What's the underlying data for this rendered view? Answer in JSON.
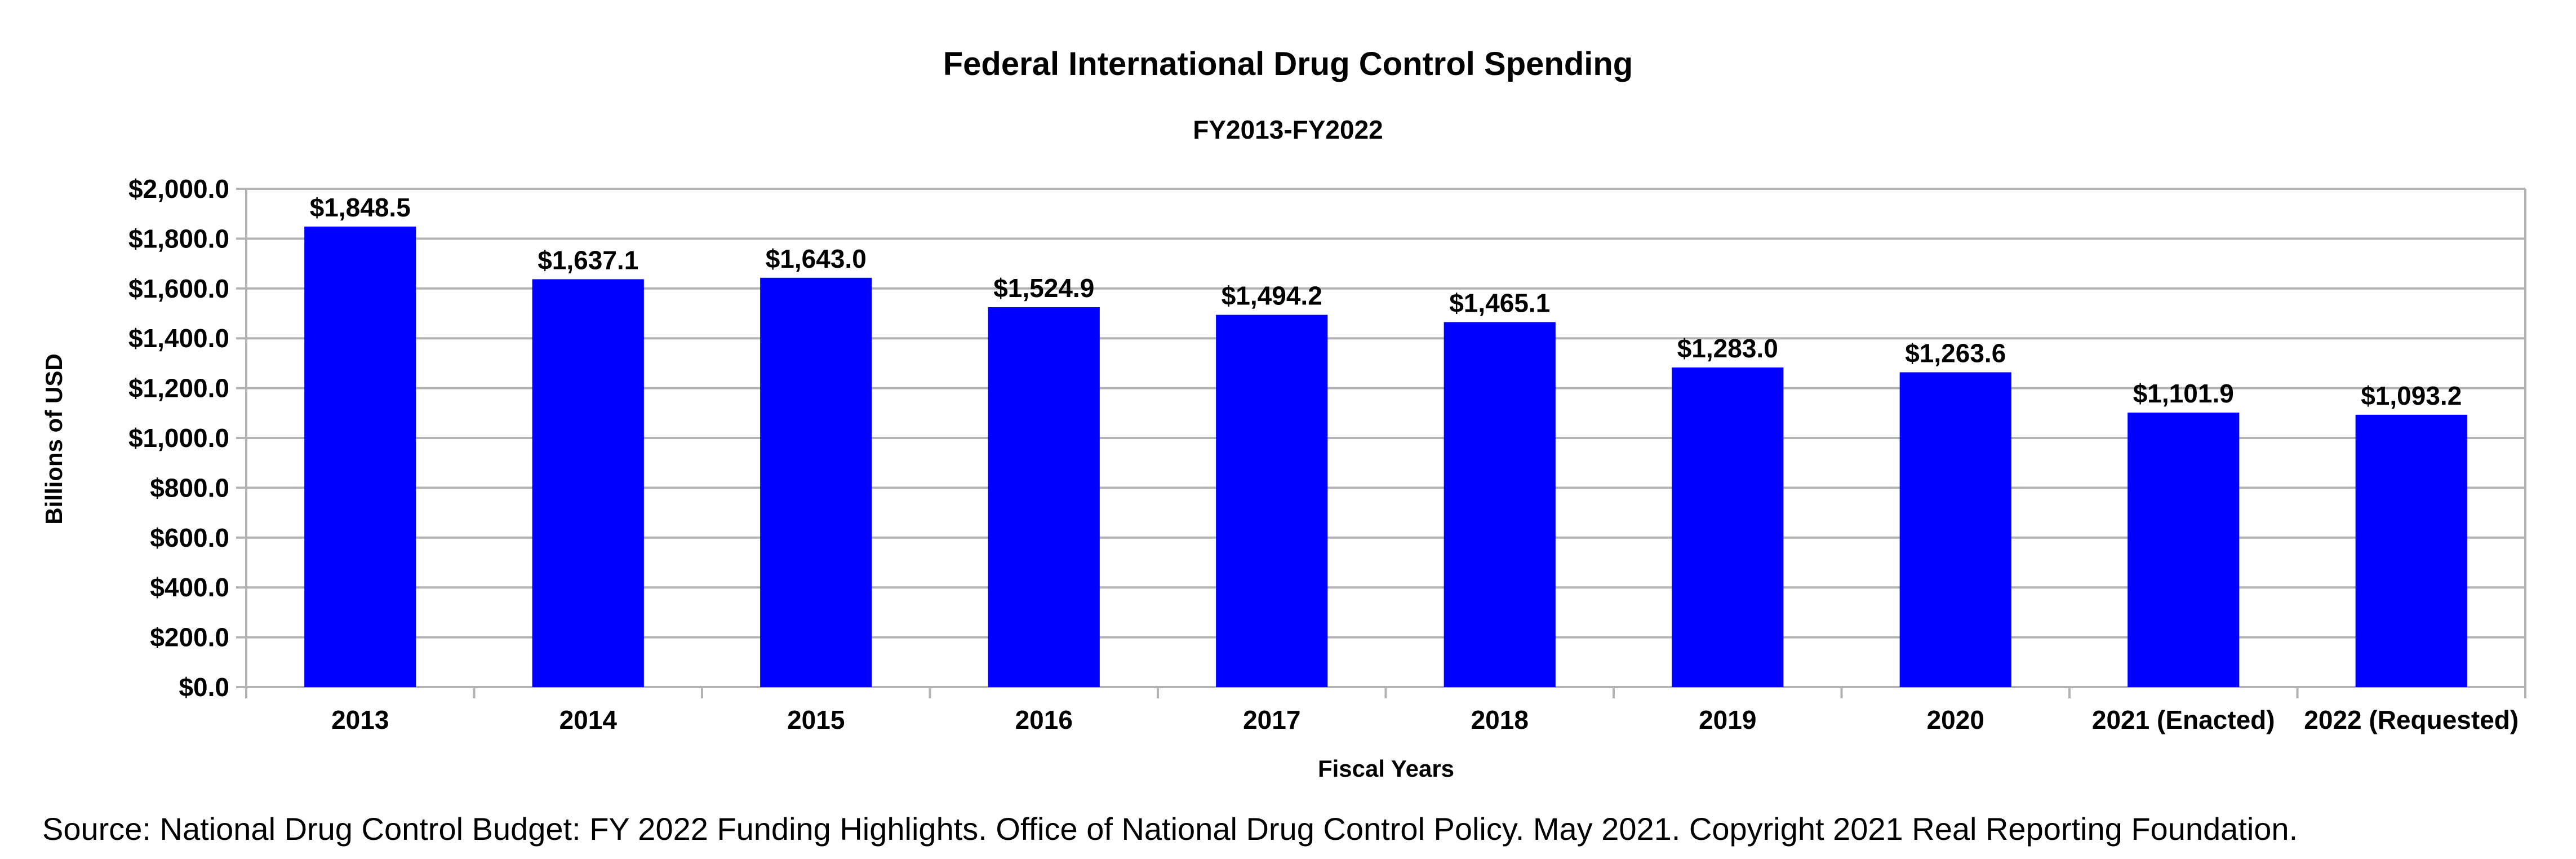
{
  "chart_data": {
    "type": "bar",
    "title": "Federal International Drug Control Spending",
    "subtitle": "FY2013-FY2022",
    "xlabel": "Fiscal Years",
    "ylabel": "Billions of USD",
    "ylim": [
      0,
      2000
    ],
    "yticks": [
      0,
      200,
      400,
      600,
      800,
      1000,
      1200,
      1400,
      1600,
      1800,
      2000
    ],
    "ytick_labels": [
      "$0.0",
      "$200.0",
      "$400.0",
      "$600.0",
      "$800.0",
      "$1,000.0",
      "$1,200.0",
      "$1,400.0",
      "$1,600.0",
      "$1,800.0",
      "$2,000.0"
    ],
    "grid": true,
    "legend": "none",
    "bar_color": "#0000ff",
    "categories": [
      "2013",
      "2014",
      "2015",
      "2016",
      "2017",
      "2018",
      "2019",
      "2020",
      "2021 (Enacted)",
      "2022 (Requested)"
    ],
    "values": [
      1848.5,
      1637.1,
      1643.0,
      1524.9,
      1494.2,
      1465.1,
      1283.0,
      1263.6,
      1101.9,
      1093.2
    ],
    "data_labels": [
      "$1,848.5",
      "$1,637.1",
      "$1,643.0",
      "$1,524.9",
      "$1,494.2",
      "$1,465.1",
      "$1,283.0",
      "$1,263.6",
      "$1,101.9",
      "$1,093.2"
    ]
  },
  "source": "Source: National Drug Control Budget: FY 2022 Funding Highlights. Office of National Drug Control Policy. May 2021. Copyright 2021 Real Reporting Foundation."
}
